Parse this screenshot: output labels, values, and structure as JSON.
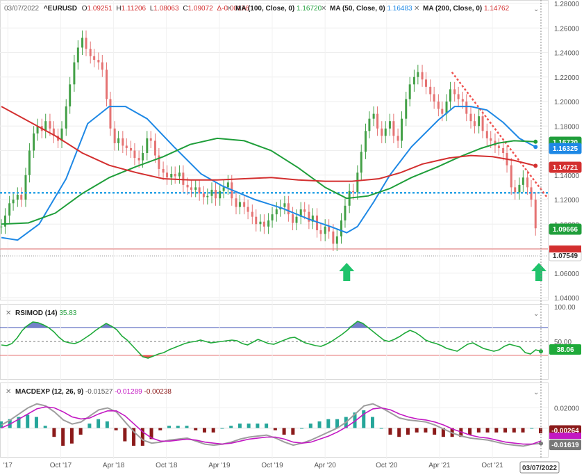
{
  "chart_data": {
    "type": "line",
    "symbol": "^EURUSD",
    "header": {
      "date": "03/07/2022",
      "symbol": "^EURUSD",
      "ohlc": [
        {
          "k": "O",
          "v": "1.09251"
        },
        {
          "k": "H",
          "v": "1.11206"
        },
        {
          "k": "L",
          "v": "1.08063"
        },
        {
          "k": "C",
          "v": "1.09072"
        }
      ],
      "change": "Δ-0.00176",
      "studies": [
        {
          "label": "MA (100, Close, 0)",
          "value": "1.16720",
          "color": "#1f9e3a"
        },
        {
          "label": "MA (50, Close, 0)",
          "value": "1.16483",
          "color": "#1e88e5"
        },
        {
          "label": "MA (200, Close, 0)",
          "value": "1.14762",
          "color": "#d32f2f"
        }
      ]
    },
    "x_axis": {
      "ticks": [
        "'17",
        "Oct '17",
        "Apr '18",
        "Oct '18",
        "Apr '19",
        "Oct '19",
        "Apr '20",
        "Oct '20",
        "Apr '21",
        "Oct '21"
      ],
      "cursor_date": "03/07/2022"
    },
    "price": {
      "ylim": [
        1.04,
        1.28
      ],
      "ticks": [
        "1.28000",
        "1.26000",
        "1.24000",
        "1.22000",
        "1.20000",
        "1.18000",
        "1.16000",
        "1.14000",
        "1.12000",
        "1.10000",
        "1.08000",
        "1.06000",
        "1.04000"
      ],
      "support_level": 1.1255,
      "series": [
        {
          "name": "MA 50",
          "color": "#1e88e5",
          "points": [
            [
              0,
              1.089
            ],
            [
              0.03,
              1.087
            ],
            [
              0.07,
              1.1
            ],
            [
              0.12,
              1.137
            ],
            [
              0.16,
              1.182
            ],
            [
              0.2,
              1.196
            ],
            [
              0.23,
              1.196
            ],
            [
              0.27,
              1.186
            ],
            [
              0.32,
              1.163
            ],
            [
              0.37,
              1.141
            ],
            [
              0.41,
              1.131
            ],
            [
              0.47,
              1.12
            ],
            [
              0.52,
              1.113
            ],
            [
              0.57,
              1.104
            ],
            [
              0.61,
              1.098
            ],
            [
              0.64,
              1.093
            ],
            [
              0.66,
              1.098
            ],
            [
              0.69,
              1.118
            ],
            [
              0.72,
              1.14
            ],
            [
              0.76,
              1.163
            ],
            [
              0.81,
              1.185
            ],
            [
              0.84,
              1.196
            ],
            [
              0.87,
              1.196
            ],
            [
              0.9,
              1.193
            ],
            [
              0.93,
              1.183
            ],
            [
              0.96,
              1.17
            ],
            [
              0.99,
              1.163
            ]
          ]
        },
        {
          "name": "MA 100",
          "color": "#1f9e3a",
          "points": [
            [
              0,
              1.1
            ],
            [
              0.05,
              1.101
            ],
            [
              0.1,
              1.109
            ],
            [
              0.15,
              1.125
            ],
            [
              0.2,
              1.138
            ],
            [
              0.25,
              1.147
            ],
            [
              0.3,
              1.155
            ],
            [
              0.35,
              1.165
            ],
            [
              0.4,
              1.17
            ],
            [
              0.45,
              1.168
            ],
            [
              0.5,
              1.16
            ],
            [
              0.55,
              1.146
            ],
            [
              0.6,
              1.13
            ],
            [
              0.64,
              1.121
            ],
            [
              0.68,
              1.123
            ],
            [
              0.72,
              1.129
            ],
            [
              0.76,
              1.138
            ],
            [
              0.81,
              1.147
            ],
            [
              0.85,
              1.155
            ],
            [
              0.89,
              1.162
            ],
            [
              0.92,
              1.166
            ],
            [
              0.95,
              1.168
            ],
            [
              0.99,
              1.1672
            ]
          ]
        },
        {
          "name": "MA 200",
          "color": "#d32f2f",
          "points": [
            [
              0,
              1.196
            ],
            [
              0.05,
              1.184
            ],
            [
              0.1,
              1.172
            ],
            [
              0.15,
              1.158
            ],
            [
              0.2,
              1.148
            ],
            [
              0.25,
              1.142
            ],
            [
              0.3,
              1.137
            ],
            [
              0.35,
              1.136
            ],
            [
              0.4,
              1.136
            ],
            [
              0.45,
              1.137
            ],
            [
              0.5,
              1.138
            ],
            [
              0.55,
              1.136
            ],
            [
              0.6,
              1.135
            ],
            [
              0.65,
              1.135
            ],
            [
              0.7,
              1.137
            ],
            [
              0.74,
              1.142
            ],
            [
              0.78,
              1.149
            ],
            [
              0.83,
              1.154
            ],
            [
              0.87,
              1.156
            ],
            [
              0.91,
              1.155
            ],
            [
              0.95,
              1.152
            ],
            [
              0.99,
              1.1476
            ]
          ]
        }
      ],
      "candles": [
        [
          0.0,
          1.098
        ],
        [
          0.007,
          1.107
        ],
        [
          0.015,
          1.117
        ],
        [
          0.022,
          1.12
        ],
        [
          0.03,
          1.124
        ],
        [
          0.037,
          1.12
        ],
        [
          0.045,
          1.14
        ],
        [
          0.052,
          1.16
        ],
        [
          0.06,
          1.174
        ],
        [
          0.067,
          1.18
        ],
        [
          0.075,
          1.176
        ],
        [
          0.082,
          1.184
        ],
        [
          0.09,
          1.178
        ],
        [
          0.097,
          1.172
        ],
        [
          0.105,
          1.168
        ],
        [
          0.112,
          1.178
        ],
        [
          0.12,
          1.196
        ],
        [
          0.127,
          1.214
        ],
        [
          0.135,
          1.232
        ],
        [
          0.142,
          1.244
        ],
        [
          0.15,
          1.252
        ],
        [
          0.157,
          1.243
        ],
        [
          0.165,
          1.237
        ],
        [
          0.172,
          1.234
        ],
        [
          0.18,
          1.232
        ],
        [
          0.187,
          1.226
        ],
        [
          0.195,
          1.202
        ],
        [
          0.202,
          1.178
        ],
        [
          0.21,
          1.166
        ],
        [
          0.217,
          1.17
        ],
        [
          0.225,
          1.164
        ],
        [
          0.232,
          1.162
        ],
        [
          0.24,
          1.16
        ],
        [
          0.247,
          1.154
        ],
        [
          0.255,
          1.152
        ],
        [
          0.262,
          1.158
        ],
        [
          0.27,
          1.17
        ],
        [
          0.277,
          1.168
        ],
        [
          0.285,
          1.156
        ],
        [
          0.292,
          1.145
        ],
        [
          0.3,
          1.142
        ],
        [
          0.307,
          1.138
        ],
        [
          0.315,
          1.141
        ],
        [
          0.322,
          1.139
        ],
        [
          0.33,
          1.142
        ],
        [
          0.337,
          1.132
        ],
        [
          0.345,
          1.13
        ],
        [
          0.352,
          1.128
        ],
        [
          0.36,
          1.13
        ],
        [
          0.367,
          1.125
        ],
        [
          0.375,
          1.122
        ],
        [
          0.382,
          1.123
        ],
        [
          0.39,
          1.128
        ],
        [
          0.397,
          1.121
        ],
        [
          0.405,
          1.127
        ],
        [
          0.412,
          1.13
        ],
        [
          0.42,
          1.134
        ],
        [
          0.427,
          1.121
        ],
        [
          0.435,
          1.114
        ],
        [
          0.442,
          1.118
        ],
        [
          0.45,
          1.114
        ],
        [
          0.457,
          1.11
        ],
        [
          0.465,
          1.106
        ],
        [
          0.472,
          1.1
        ],
        [
          0.48,
          1.102
        ],
        [
          0.487,
          1.098
        ],
        [
          0.495,
          1.103
        ],
        [
          0.502,
          1.108
        ],
        [
          0.51,
          1.112
        ],
        [
          0.517,
          1.114
        ],
        [
          0.525,
          1.117
        ],
        [
          0.532,
          1.108
        ],
        [
          0.54,
          1.101
        ],
        [
          0.547,
          1.106
        ],
        [
          0.555,
          1.112
        ],
        [
          0.562,
          1.11
        ],
        [
          0.57,
          1.102
        ],
        [
          0.577,
          1.107
        ],
        [
          0.585,
          1.095
        ],
        [
          0.592,
          1.092
        ],
        [
          0.6,
          1.098
        ],
        [
          0.607,
          1.094
        ],
        [
          0.615,
          1.084
        ],
        [
          0.622,
          1.09
        ],
        [
          0.63,
          1.103
        ],
        [
          0.637,
          1.115
        ],
        [
          0.645,
          1.127
        ],
        [
          0.652,
          1.126
        ],
        [
          0.66,
          1.142
        ],
        [
          0.667,
          1.159
        ],
        [
          0.675,
          1.176
        ],
        [
          0.682,
          1.186
        ],
        [
          0.69,
          1.19
        ],
        [
          0.697,
          1.178
        ],
        [
          0.705,
          1.172
        ],
        [
          0.712,
          1.178
        ],
        [
          0.72,
          1.184
        ],
        [
          0.727,
          1.172
        ],
        [
          0.735,
          1.168
        ],
        [
          0.742,
          1.186
        ],
        [
          0.75,
          1.202
        ],
        [
          0.757,
          1.214
        ],
        [
          0.765,
          1.22
        ],
        [
          0.772,
          1.224
        ],
        [
          0.78,
          1.218
        ],
        [
          0.787,
          1.212
        ],
        [
          0.795,
          1.206
        ],
        [
          0.802,
          1.2
        ],
        [
          0.81,
          1.194
        ],
        [
          0.817,
          1.19
        ],
        [
          0.825,
          1.2
        ],
        [
          0.832,
          1.21
        ],
        [
          0.84,
          1.206
        ],
        [
          0.847,
          1.202
        ],
        [
          0.855,
          1.2
        ],
        [
          0.862,
          1.19
        ],
        [
          0.87,
          1.184
        ],
        [
          0.877,
          1.18
        ],
        [
          0.885,
          1.188
        ],
        [
          0.892,
          1.176
        ],
        [
          0.9,
          1.17
        ],
        [
          0.907,
          1.168
        ],
        [
          0.915,
          1.164
        ],
        [
          0.922,
          1.162
        ],
        [
          0.93,
          1.158
        ],
        [
          0.937,
          1.148
        ],
        [
          0.945,
          1.13
        ],
        [
          0.952,
          1.126
        ],
        [
          0.96,
          1.132
        ],
        [
          0.967,
          1.138
        ],
        [
          0.975,
          1.13
        ],
        [
          0.982,
          1.12
        ],
        [
          0.99,
          1.0966
        ]
      ],
      "trendline": {
        "from": [
          0.835,
          1.224
        ],
        "to": [
          1.0,
          1.121
        ],
        "color": "#ef5350"
      },
      "badges": [
        {
          "value": "1.16720",
          "color": "#1f9e3a"
        },
        {
          "value": "1.16325",
          "color": "#1e88e5"
        },
        {
          "value": "1.14721",
          "color": "#d32f2f"
        },
        {
          "value": "1.09666",
          "color": "#1f9e3a"
        },
        {
          "value": "1.07549",
          "color": "#ffffff"
        }
      ],
      "arrows": [
        0.64,
        0.99
      ]
    },
    "rsi": {
      "label": "RSIMOD (14)",
      "value": "35.83",
      "ticks": [
        "100.00",
        "50.00"
      ],
      "upper": 70,
      "lower": 30,
      "mid": 50,
      "current": "38.06",
      "values": [
        45,
        44,
        47,
        55,
        66,
        73,
        78,
        77,
        74,
        70,
        64,
        56,
        50,
        48,
        47,
        50,
        55,
        60,
        66,
        71,
        76,
        72,
        67,
        58,
        52,
        44,
        36,
        28,
        26,
        29,
        32,
        34,
        38,
        41,
        44,
        47,
        49,
        50,
        52,
        50,
        48,
        49,
        50,
        51,
        52,
        51,
        47,
        45,
        49,
        53,
        50,
        47,
        46,
        49,
        52,
        55,
        56,
        52,
        48,
        46,
        44,
        43,
        46,
        50,
        55,
        60,
        66,
        73,
        79,
        76,
        70,
        64,
        58,
        52,
        50,
        53,
        57,
        62,
        66,
        63,
        58,
        52,
        49,
        47,
        44,
        40,
        38,
        36,
        41,
        46,
        48,
        44,
        40,
        38,
        36,
        38,
        43,
        46,
        44,
        42,
        34,
        32,
        38,
        35.83
      ]
    },
    "macd": {
      "label": "MACDEXP (12, 26, 9)",
      "values_text": [
        {
          "v": "-0.01527",
          "color": "#555555"
        },
        {
          "v": "-0.01289",
          "color": "#c318c3"
        },
        {
          "v": "-0.00238",
          "color": "#8b1a1a"
        }
      ],
      "ticks": [
        "0.02000"
      ],
      "ylim": [
        -0.028,
        0.03
      ],
      "macd_line": [
        0.003,
        0.008,
        0.014,
        0.02,
        0.024,
        0.022,
        0.016,
        0.008,
        0.004,
        0.006,
        0.012,
        0.018,
        0.02,
        0.016,
        0.006,
        -0.004,
        -0.012,
        -0.015,
        -0.014,
        -0.012,
        -0.011,
        -0.01,
        -0.013,
        -0.016,
        -0.017,
        -0.016,
        -0.014,
        -0.011,
        -0.009,
        -0.008,
        -0.007,
        -0.01,
        -0.014,
        -0.017,
        -0.015,
        -0.012,
        -0.008,
        -0.004,
        0.0,
        0.006,
        0.014,
        0.022,
        0.024,
        0.02,
        0.015,
        0.01,
        0.008,
        0.007,
        0.006,
        0.003,
        -0.001,
        -0.005,
        -0.008,
        -0.01,
        -0.011,
        -0.012,
        -0.014,
        -0.016,
        -0.017,
        -0.018,
        -0.016,
        -0.01527
      ],
      "signal_line": [
        0.0,
        0.004,
        0.009,
        0.014,
        0.019,
        0.021,
        0.02,
        0.016,
        0.011,
        0.009,
        0.01,
        0.014,
        0.017,
        0.017,
        0.012,
        0.004,
        -0.004,
        -0.01,
        -0.013,
        -0.013,
        -0.012,
        -0.011,
        -0.012,
        -0.014,
        -0.015,
        -0.016,
        -0.015,
        -0.013,
        -0.011,
        -0.01,
        -0.009,
        -0.009,
        -0.011,
        -0.014,
        -0.015,
        -0.014,
        -0.011,
        -0.008,
        -0.004,
        0.001,
        0.007,
        0.014,
        0.019,
        0.02,
        0.018,
        0.014,
        0.011,
        0.009,
        0.008,
        0.006,
        0.003,
        -0.001,
        -0.004,
        -0.007,
        -0.009,
        -0.01,
        -0.012,
        -0.014,
        -0.015,
        -0.016,
        -0.016,
        -0.01289
      ],
      "badges": [
        {
          "value": "-0.00264",
          "color": "#8b1a1a"
        },
        {
          "value": "-0.01619",
          "color": "#777777"
        }
      ]
    }
  }
}
